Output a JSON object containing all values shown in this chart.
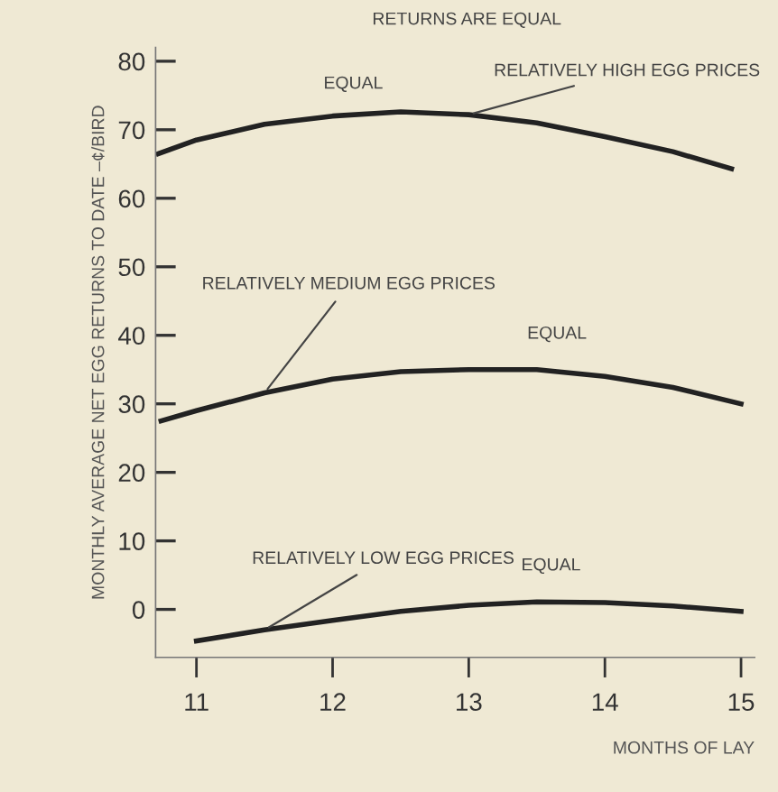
{
  "chart_data": {
    "type": "line",
    "title": "RETURNS ARE EQUAL",
    "xlabel": "MONTHS OF LAY",
    "ylabel": "MONTHLY AVERAGE NET EGG RETURNS TO DATE –¢/BIRD",
    "xlim": [
      10.7,
      15.1
    ],
    "ylim": [
      -7,
      82
    ],
    "xticks": [
      11,
      12,
      13,
      14,
      15
    ],
    "yticks": [
      0,
      10,
      20,
      30,
      40,
      50,
      60,
      70,
      80
    ],
    "grid": false,
    "legend": false,
    "marker": "none",
    "line_style": "solid",
    "series": [
      {
        "name": "RELATIVELY HIGH EGG PRICES",
        "color": "#222222",
        "x": [
          10.72,
          11,
          11.5,
          12,
          12.5,
          13,
          13.5,
          14,
          14.5,
          14.93
        ],
        "values": [
          66.5,
          68.5,
          70.8,
          72,
          72.6,
          72.2,
          71,
          69,
          66.8,
          64.3
        ]
      },
      {
        "name": "RELATIVELY MEDIUM EGG PRICES",
        "color": "#222222",
        "x": [
          10.74,
          11,
          11.5,
          12,
          12.5,
          13,
          13.5,
          14,
          14.5,
          15
        ],
        "values": [
          27.5,
          29,
          31.6,
          33.6,
          34.7,
          35,
          35,
          34,
          32.4,
          30
        ]
      },
      {
        "name": "RELATIVELY LOW EGG PRICES",
        "color": "#222222",
        "x": [
          11,
          11.5,
          12,
          12.5,
          13,
          13.5,
          14,
          14.5,
          15
        ],
        "values": [
          -4.6,
          -3,
          -1.6,
          -0.3,
          0.6,
          1.1,
          1,
          0.5,
          -0.3
        ]
      }
    ],
    "annotations": [
      "EQUAL",
      "EQUAL",
      "EQUAL"
    ]
  }
}
